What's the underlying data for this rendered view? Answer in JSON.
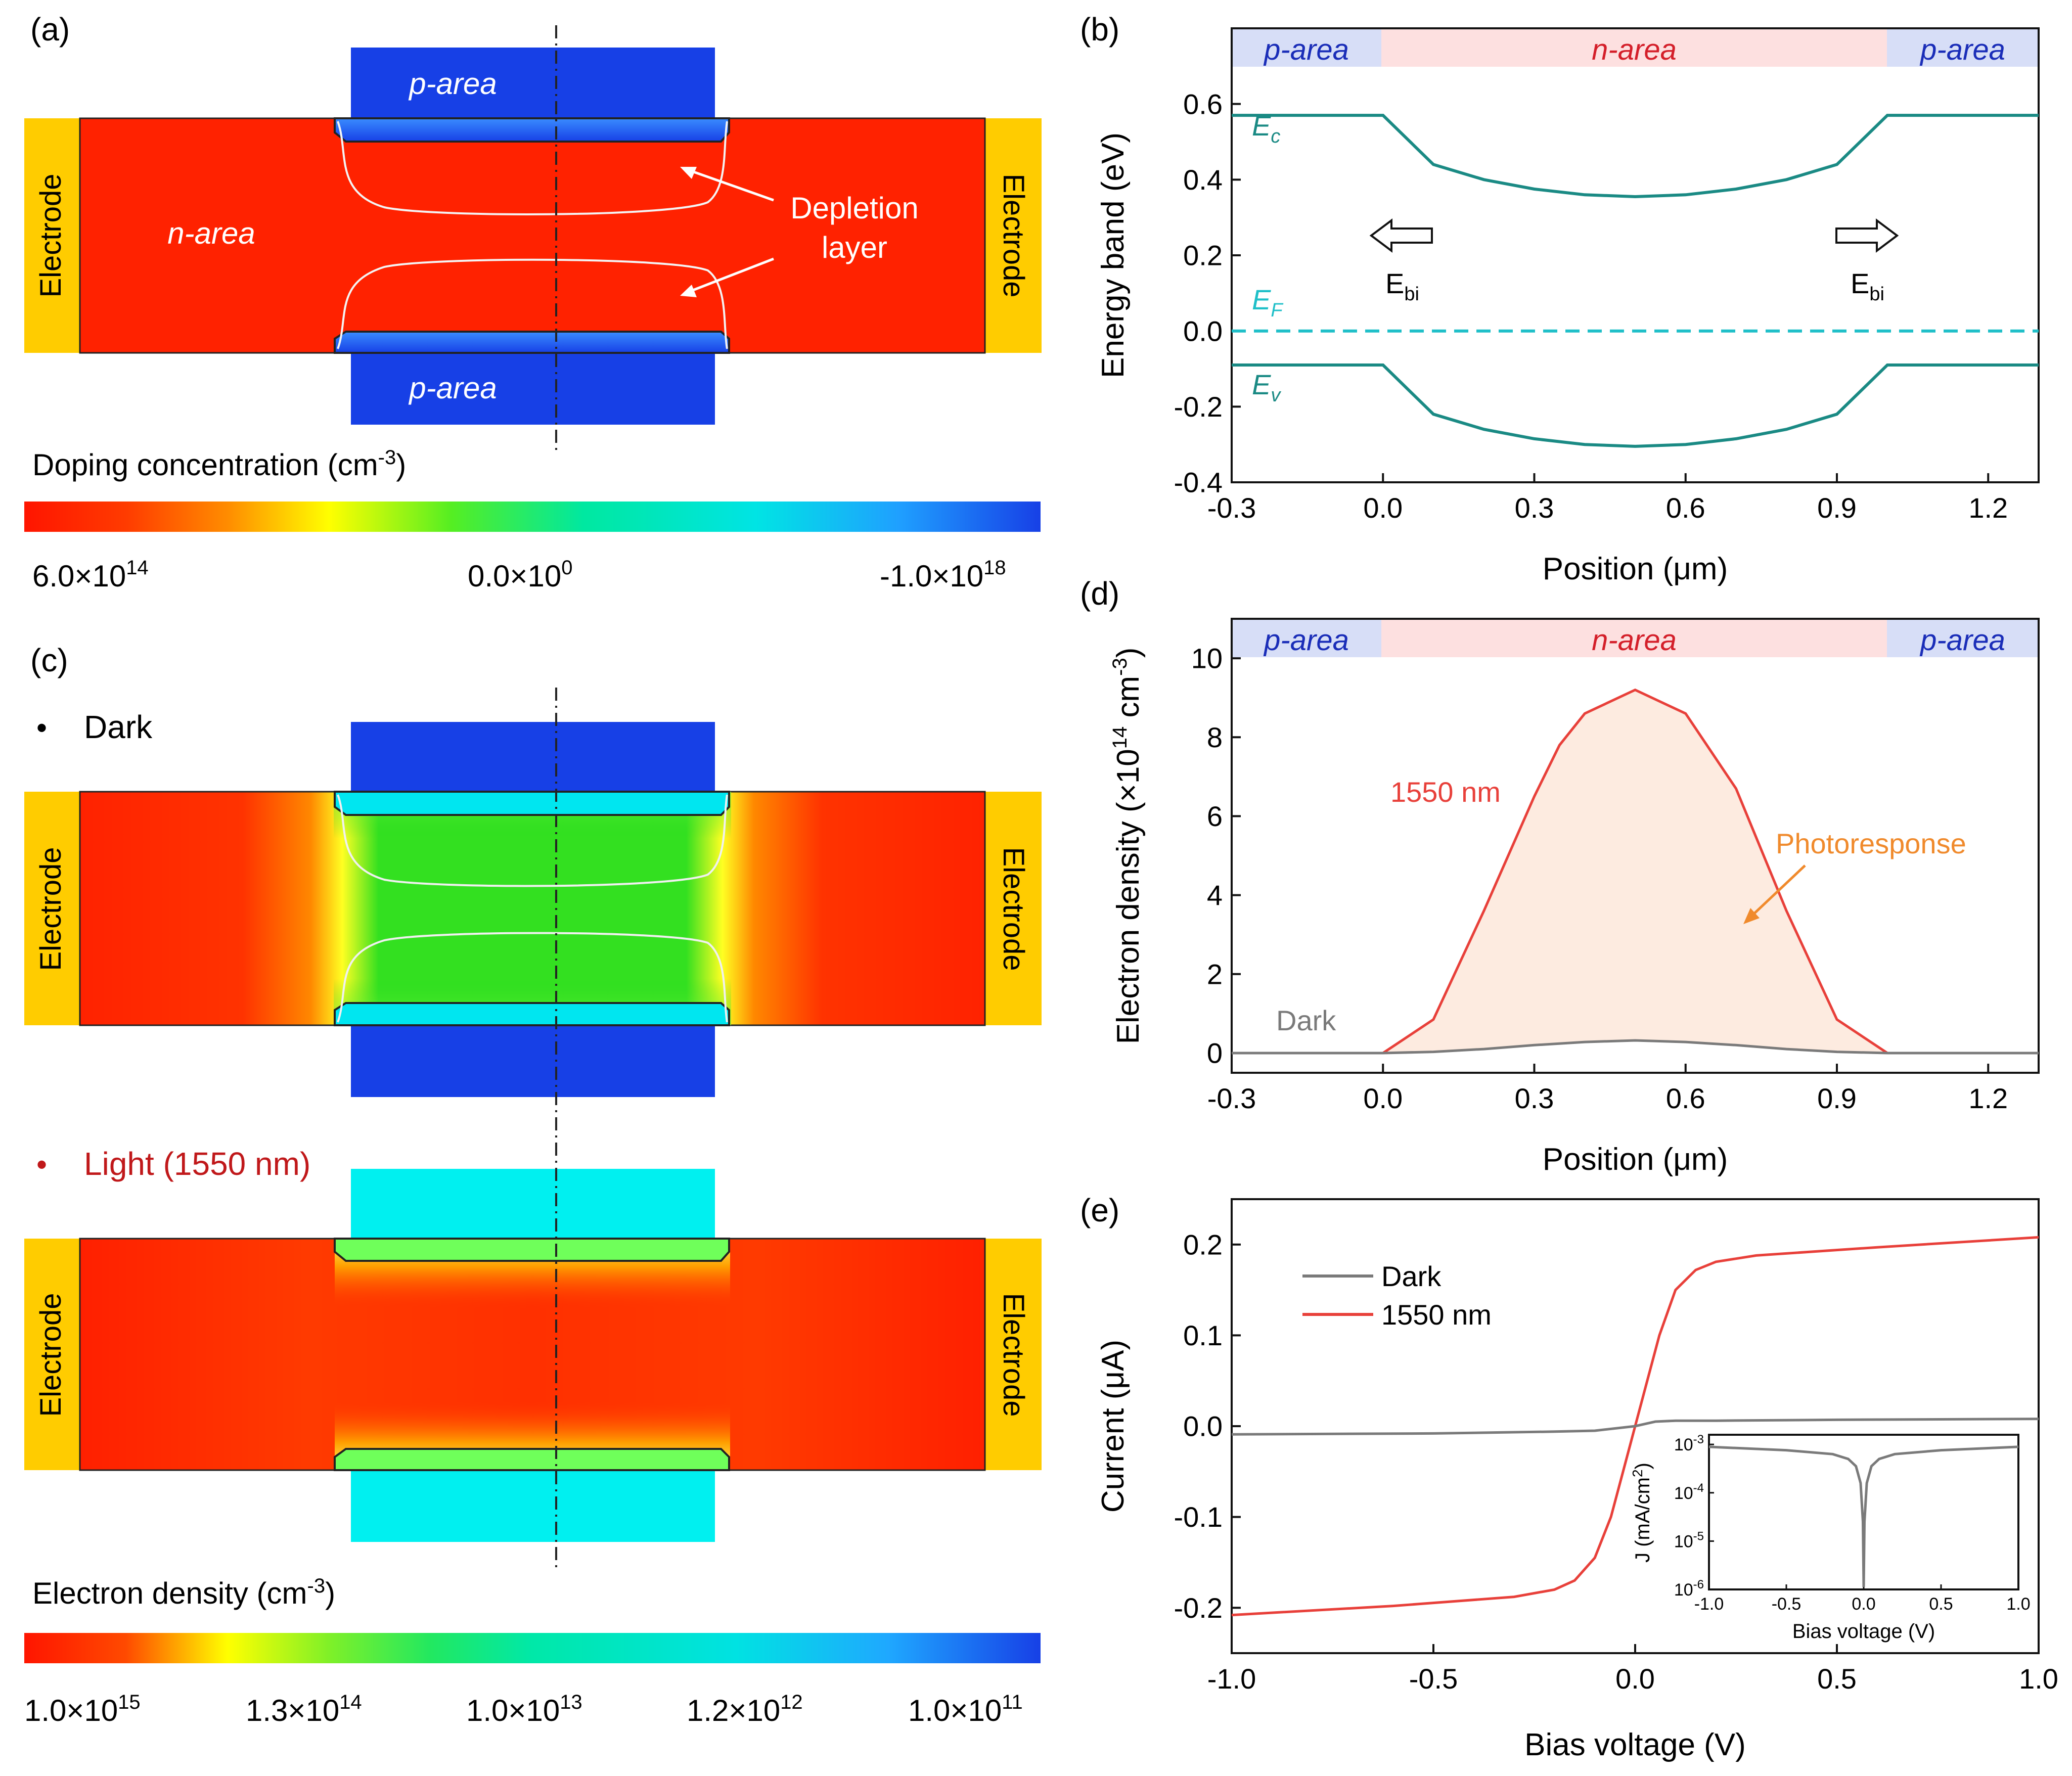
{
  "panel_a": {
    "label": "(a)",
    "p_area": "p-area",
    "n_area": "n-area",
    "electrode": "Electrode",
    "depletion_line1": "Depletion",
    "depletion_line2": "layer",
    "colorbar_title": "Doping concentration (cm",
    "colorbar_title_sup": "-3",
    "colorbar_title_end": ")",
    "ticks": [
      {
        "mant": "6.0×10",
        "exp": "14"
      },
      {
        "mant": "0.0×10",
        "exp": "0"
      },
      {
        "mant": "-1.0×10",
        "exp": "18"
      }
    ]
  },
  "panel_c": {
    "label": "(c)",
    "dark_bullet": "•",
    "dark_label": "Dark",
    "light_bullet": "•",
    "light_label": "Light (1550 nm)",
    "electrode": "Electrode",
    "colorbar_title": "Electron density (cm",
    "colorbar_title_sup": "-3",
    "colorbar_title_end": ")",
    "ticks": [
      {
        "mant": "1.0×10",
        "exp": "15"
      },
      {
        "mant": "1.3×10",
        "exp": "14"
      },
      {
        "mant": "1.0×10",
        "exp": "13"
      },
      {
        "mant": "1.2×10",
        "exp": "12"
      },
      {
        "mant": "1.0×10",
        "exp": "11"
      }
    ]
  },
  "colors": {
    "red": "#ff2200",
    "blue": "#1740e6",
    "cyan": "#00f0f0",
    "green": "#22e822",
    "gold": "#ffcc00",
    "teal": "#1a8a84",
    "ef": "#1fbfc8",
    "curve_red": "#e8403a",
    "gray": "#7a7a7a",
    "orange": "#f08a2c"
  },
  "chart_data": [
    {
      "id": "b",
      "label": "(b)",
      "type": "line",
      "title": "",
      "xlabel": "Position (μm)",
      "ylabel": "Energy band (eV)",
      "xlim": [
        -0.3,
        1.3
      ],
      "ylim": [
        -0.4,
        0.8
      ],
      "xticks": [
        "-0.3",
        "0.0",
        "0.3",
        "0.6",
        "0.9",
        "1.2"
      ],
      "yticks": [
        "-0.4",
        "-0.2",
        "0.0",
        "0.2",
        "0.4",
        "0.6"
      ],
      "regions": [
        "p-area",
        "n-area",
        "p-area"
      ],
      "series": [
        {
          "name": "Ec",
          "main": "E",
          "sub": "c",
          "x": [
            -0.3,
            0.0,
            0.1,
            0.2,
            0.3,
            0.4,
            0.5,
            0.6,
            0.7,
            0.8,
            0.9,
            1.0,
            1.3
          ],
          "values": [
            0.57,
            0.57,
            0.44,
            0.4,
            0.375,
            0.36,
            0.355,
            0.36,
            0.375,
            0.4,
            0.44,
            0.57,
            0.57
          ]
        },
        {
          "name": "EF",
          "main": "E",
          "sub": "F",
          "x": [
            -0.3,
            1.3
          ],
          "values": [
            0.0,
            0.0
          ]
        },
        {
          "name": "Ev",
          "main": "E",
          "sub": "v",
          "x": [
            -0.3,
            0.0,
            0.1,
            0.2,
            0.3,
            0.4,
            0.5,
            0.6,
            0.7,
            0.8,
            0.9,
            1.0,
            1.3
          ],
          "values": [
            -0.09,
            -0.09,
            -0.22,
            -0.26,
            -0.285,
            -0.3,
            -0.305,
            -0.3,
            -0.285,
            -0.26,
            -0.22,
            -0.09,
            -0.09
          ]
        }
      ],
      "annotations": [
        {
          "main": "E",
          "sub": "bi"
        },
        {
          "main": "E",
          "sub": "bi"
        }
      ]
    },
    {
      "id": "d",
      "label": "(d)",
      "type": "area",
      "title": "",
      "xlabel": "Position (μm)",
      "ylabel": "Electron density (×10",
      "ylabel_sup": "14",
      "ylabel_mid": " cm",
      "ylabel_sup2": "-3",
      "ylabel_end": ")",
      "xlim": [
        -0.3,
        1.3
      ],
      "ylim": [
        -0.5,
        11
      ],
      "xticks": [
        "-0.3",
        "0.0",
        "0.3",
        "0.6",
        "0.9",
        "1.2"
      ],
      "yticks": [
        "0",
        "2",
        "4",
        "6",
        "8",
        "10"
      ],
      "regions": [
        "p-area",
        "n-area",
        "p-area"
      ],
      "series": [
        {
          "name": "1550 nm",
          "x": [
            -0.3,
            0.0,
            0.1,
            0.2,
            0.3,
            0.35,
            0.4,
            0.5,
            0.6,
            0.7,
            0.8,
            0.9,
            1.0,
            1.3
          ],
          "values": [
            0,
            0,
            0.85,
            3.6,
            6.5,
            7.8,
            8.6,
            9.2,
            8.6,
            6.7,
            3.6,
            0.85,
            0,
            0
          ]
        },
        {
          "name": "Dark",
          "x": [
            -0.3,
            0.0,
            0.1,
            0.2,
            0.3,
            0.4,
            0.5,
            0.6,
            0.7,
            0.8,
            0.9,
            1.0,
            1.3
          ],
          "values": [
            0,
            0,
            0.03,
            0.1,
            0.2,
            0.28,
            0.32,
            0.28,
            0.2,
            0.1,
            0.03,
            0,
            0
          ]
        }
      ],
      "annotations": [
        "1550 nm",
        "Dark",
        "Photoresponse"
      ]
    },
    {
      "id": "e",
      "label": "(e)",
      "type": "line",
      "title": "",
      "xlabel": "Bias voltage (V)",
      "ylabel": "Current (μA)",
      "xlim": [
        -1.0,
        1.0
      ],
      "ylim": [
        -0.25,
        0.25
      ],
      "xticks": [
        "-1.0",
        "-0.5",
        "0.0",
        "0.5",
        "1.0"
      ],
      "yticks": [
        "-0.2",
        "-0.1",
        "0.0",
        "0.1",
        "0.2"
      ],
      "legend": "top-left",
      "series": [
        {
          "name": "Dark",
          "x": [
            -1.0,
            -0.5,
            -0.2,
            -0.1,
            0.0,
            0.05,
            0.1,
            0.2,
            0.5,
            1.0
          ],
          "values": [
            -0.009,
            -0.008,
            -0.006,
            -0.005,
            0.0,
            0.005,
            0.006,
            0.006,
            0.007,
            0.008
          ]
        },
        {
          "name": "1550 nm",
          "x": [
            -1.0,
            -0.6,
            -0.3,
            -0.2,
            -0.15,
            -0.1,
            -0.06,
            -0.03,
            0.0,
            0.03,
            0.06,
            0.1,
            0.15,
            0.2,
            0.3,
            0.6,
            1.0
          ],
          "values": [
            -0.208,
            -0.198,
            -0.188,
            -0.18,
            -0.17,
            -0.145,
            -0.1,
            -0.05,
            0.0,
            0.05,
            0.1,
            0.15,
            0.172,
            0.181,
            0.188,
            0.197,
            0.208
          ]
        }
      ],
      "inset": {
        "type": "line",
        "xlabel": "Bias voltage (V)",
        "ylabel": "J (mA/cm",
        "ylabel_sup": "2",
        "ylabel_end": ")",
        "xlim": [
          -1.0,
          1.0
        ],
        "ylim_log10": [
          -6,
          -2.8
        ],
        "xticks": [
          "-1.0",
          "-0.5",
          "0.0",
          "0.5",
          "1.0"
        ],
        "yticks": [
          {
            "exp": "-3",
            "v": -3
          },
          {
            "exp": "-4",
            "v": -4
          },
          {
            "exp": "-5",
            "v": -5
          },
          {
            "exp": "-6",
            "v": -6
          }
        ],
        "ytick_base": "10",
        "series": [
          {
            "name": "Dark",
            "x": [
              -1.0,
              -0.5,
              -0.2,
              -0.1,
              -0.05,
              -0.02,
              -0.005,
              0.0,
              0.005,
              0.02,
              0.05,
              0.1,
              0.2,
              0.5,
              1.0
            ],
            "log10_values": [
              -3.05,
              -3.12,
              -3.2,
              -3.3,
              -3.45,
              -3.8,
              -4.6,
              -5.95,
              -4.6,
              -3.8,
              -3.45,
              -3.3,
              -3.2,
              -3.12,
              -3.05
            ]
          }
        ]
      }
    }
  ]
}
